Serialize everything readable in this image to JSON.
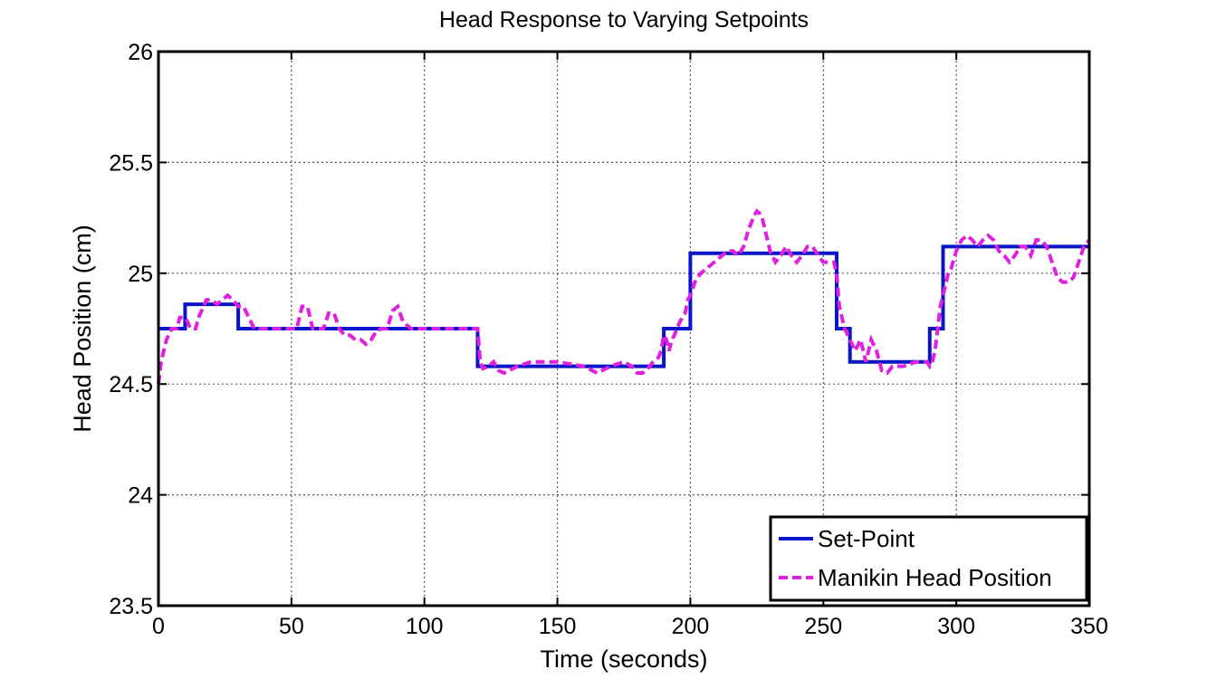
{
  "chart_data": {
    "type": "line",
    "title": "Head Response to Varying Setpoints",
    "xlabel": "Time (seconds)",
    "ylabel": "Head Position (cm)",
    "xlim": [
      0,
      350
    ],
    "ylim": [
      23.5,
      26
    ],
    "xticks": [
      0,
      50,
      100,
      150,
      200,
      250,
      300,
      350
    ],
    "yticks": [
      23.5,
      24,
      24.5,
      25,
      25.5,
      26
    ],
    "xtick_labels": [
      "0",
      "50",
      "100",
      "150",
      "200",
      "250",
      "300",
      "350"
    ],
    "ytick_labels": [
      "23.5",
      "24",
      "24.5",
      "25",
      "25.5",
      "26"
    ],
    "grid": true,
    "legend_position": "bottom-right",
    "series": [
      {
        "name": "Set-Point",
        "color": "#0a14c8",
        "style": "solid",
        "x": [
          0,
          10,
          10,
          30,
          30,
          120,
          120,
          190,
          190,
          200,
          200,
          255,
          255,
          260,
          260,
          290,
          290,
          295,
          295,
          350
        ],
        "y": [
          24.75,
          24.75,
          24.86,
          24.86,
          24.75,
          24.75,
          24.58,
          24.58,
          24.75,
          24.75,
          25.09,
          25.09,
          24.75,
          24.75,
          24.6,
          24.6,
          24.75,
          24.75,
          25.12,
          25.12
        ]
      },
      {
        "name": "Manikin Head Position",
        "color": "#e020e0",
        "style": "dashed",
        "x": [
          0,
          1,
          3,
          5,
          7,
          8,
          10,
          11,
          12,
          14,
          15,
          17,
          18,
          20,
          22,
          24,
          26,
          28,
          30,
          32,
          34,
          36,
          40,
          45,
          50,
          52,
          54,
          56,
          58,
          60,
          62,
          64,
          66,
          68,
          70,
          72,
          74,
          76,
          78,
          80,
          82,
          84,
          86,
          88,
          90,
          92,
          95,
          100,
          110,
          120,
          121,
          122,
          124,
          126,
          128,
          130,
          135,
          140,
          150,
          160,
          165,
          170,
          175,
          178,
          180,
          182,
          184,
          186,
          188,
          189,
          190,
          191,
          192,
          193,
          194,
          195,
          196,
          197,
          198,
          199,
          200,
          202,
          204,
          206,
          208,
          210,
          212,
          214,
          216,
          218,
          220,
          222,
          224,
          225,
          226,
          227,
          228,
          230,
          232,
          234,
          236,
          238,
          240,
          242,
          244,
          246,
          248,
          250,
          252,
          254,
          255,
          256,
          258,
          260,
          262,
          264,
          266,
          268,
          270,
          272,
          274,
          276,
          280,
          285,
          289,
          290,
          291,
          292,
          293,
          294,
          295,
          296,
          297,
          298,
          300,
          302,
          304,
          306,
          308,
          310,
          312,
          314,
          316,
          318,
          320,
          322,
          324,
          326,
          328,
          330,
          332,
          334,
          336,
          338,
          340,
          342,
          344,
          346,
          348,
          350
        ],
        "y": [
          24.5,
          24.6,
          24.7,
          24.75,
          24.75,
          24.8,
          24.8,
          24.78,
          24.75,
          24.75,
          24.8,
          24.85,
          24.88,
          24.88,
          24.86,
          24.88,
          24.9,
          24.88,
          24.85,
          24.85,
          24.8,
          24.75,
          24.75,
          24.75,
          24.75,
          24.75,
          24.85,
          24.85,
          24.75,
          24.75,
          24.75,
          24.82,
          24.82,
          24.75,
          24.72,
          24.72,
          24.7,
          24.7,
          24.68,
          24.7,
          24.74,
          24.75,
          24.75,
          24.83,
          24.85,
          24.78,
          24.75,
          24.75,
          24.75,
          24.75,
          24.6,
          24.57,
          24.58,
          24.6,
          24.56,
          24.55,
          24.58,
          24.6,
          24.6,
          24.58,
          24.55,
          24.58,
          24.6,
          24.58,
          24.55,
          24.55,
          24.57,
          24.6,
          24.62,
          24.65,
          24.72,
          24.7,
          24.65,
          24.7,
          24.72,
          24.75,
          24.78,
          24.8,
          24.82,
          24.88,
          24.9,
          24.97,
          25.0,
          25.02,
          25.04,
          25.06,
          25.08,
          25.1,
          25.1,
          25.08,
          25.12,
          25.2,
          25.26,
          25.28,
          25.27,
          25.25,
          25.2,
          25.1,
          25.05,
          25.08,
          25.12,
          25.08,
          25.05,
          25.08,
          25.12,
          25.12,
          25.08,
          25.05,
          25.05,
          25.05,
          25.0,
          24.85,
          24.75,
          24.7,
          24.65,
          24.7,
          24.6,
          24.7,
          24.65,
          24.56,
          24.55,
          24.58,
          24.58,
          24.6,
          24.6,
          24.58,
          24.6,
          24.65,
          24.75,
          24.85,
          24.9,
          24.95,
          25.0,
          25.02,
          25.1,
          25.15,
          25.17,
          25.15,
          25.12,
          25.15,
          25.17,
          25.15,
          25.1,
          25.08,
          25.05,
          25.08,
          25.12,
          25.12,
          25.08,
          25.15,
          25.15,
          25.12,
          25.05,
          24.98,
          24.96,
          24.96,
          24.98,
          25.05,
          25.12,
          25.15
        ]
      }
    ]
  }
}
